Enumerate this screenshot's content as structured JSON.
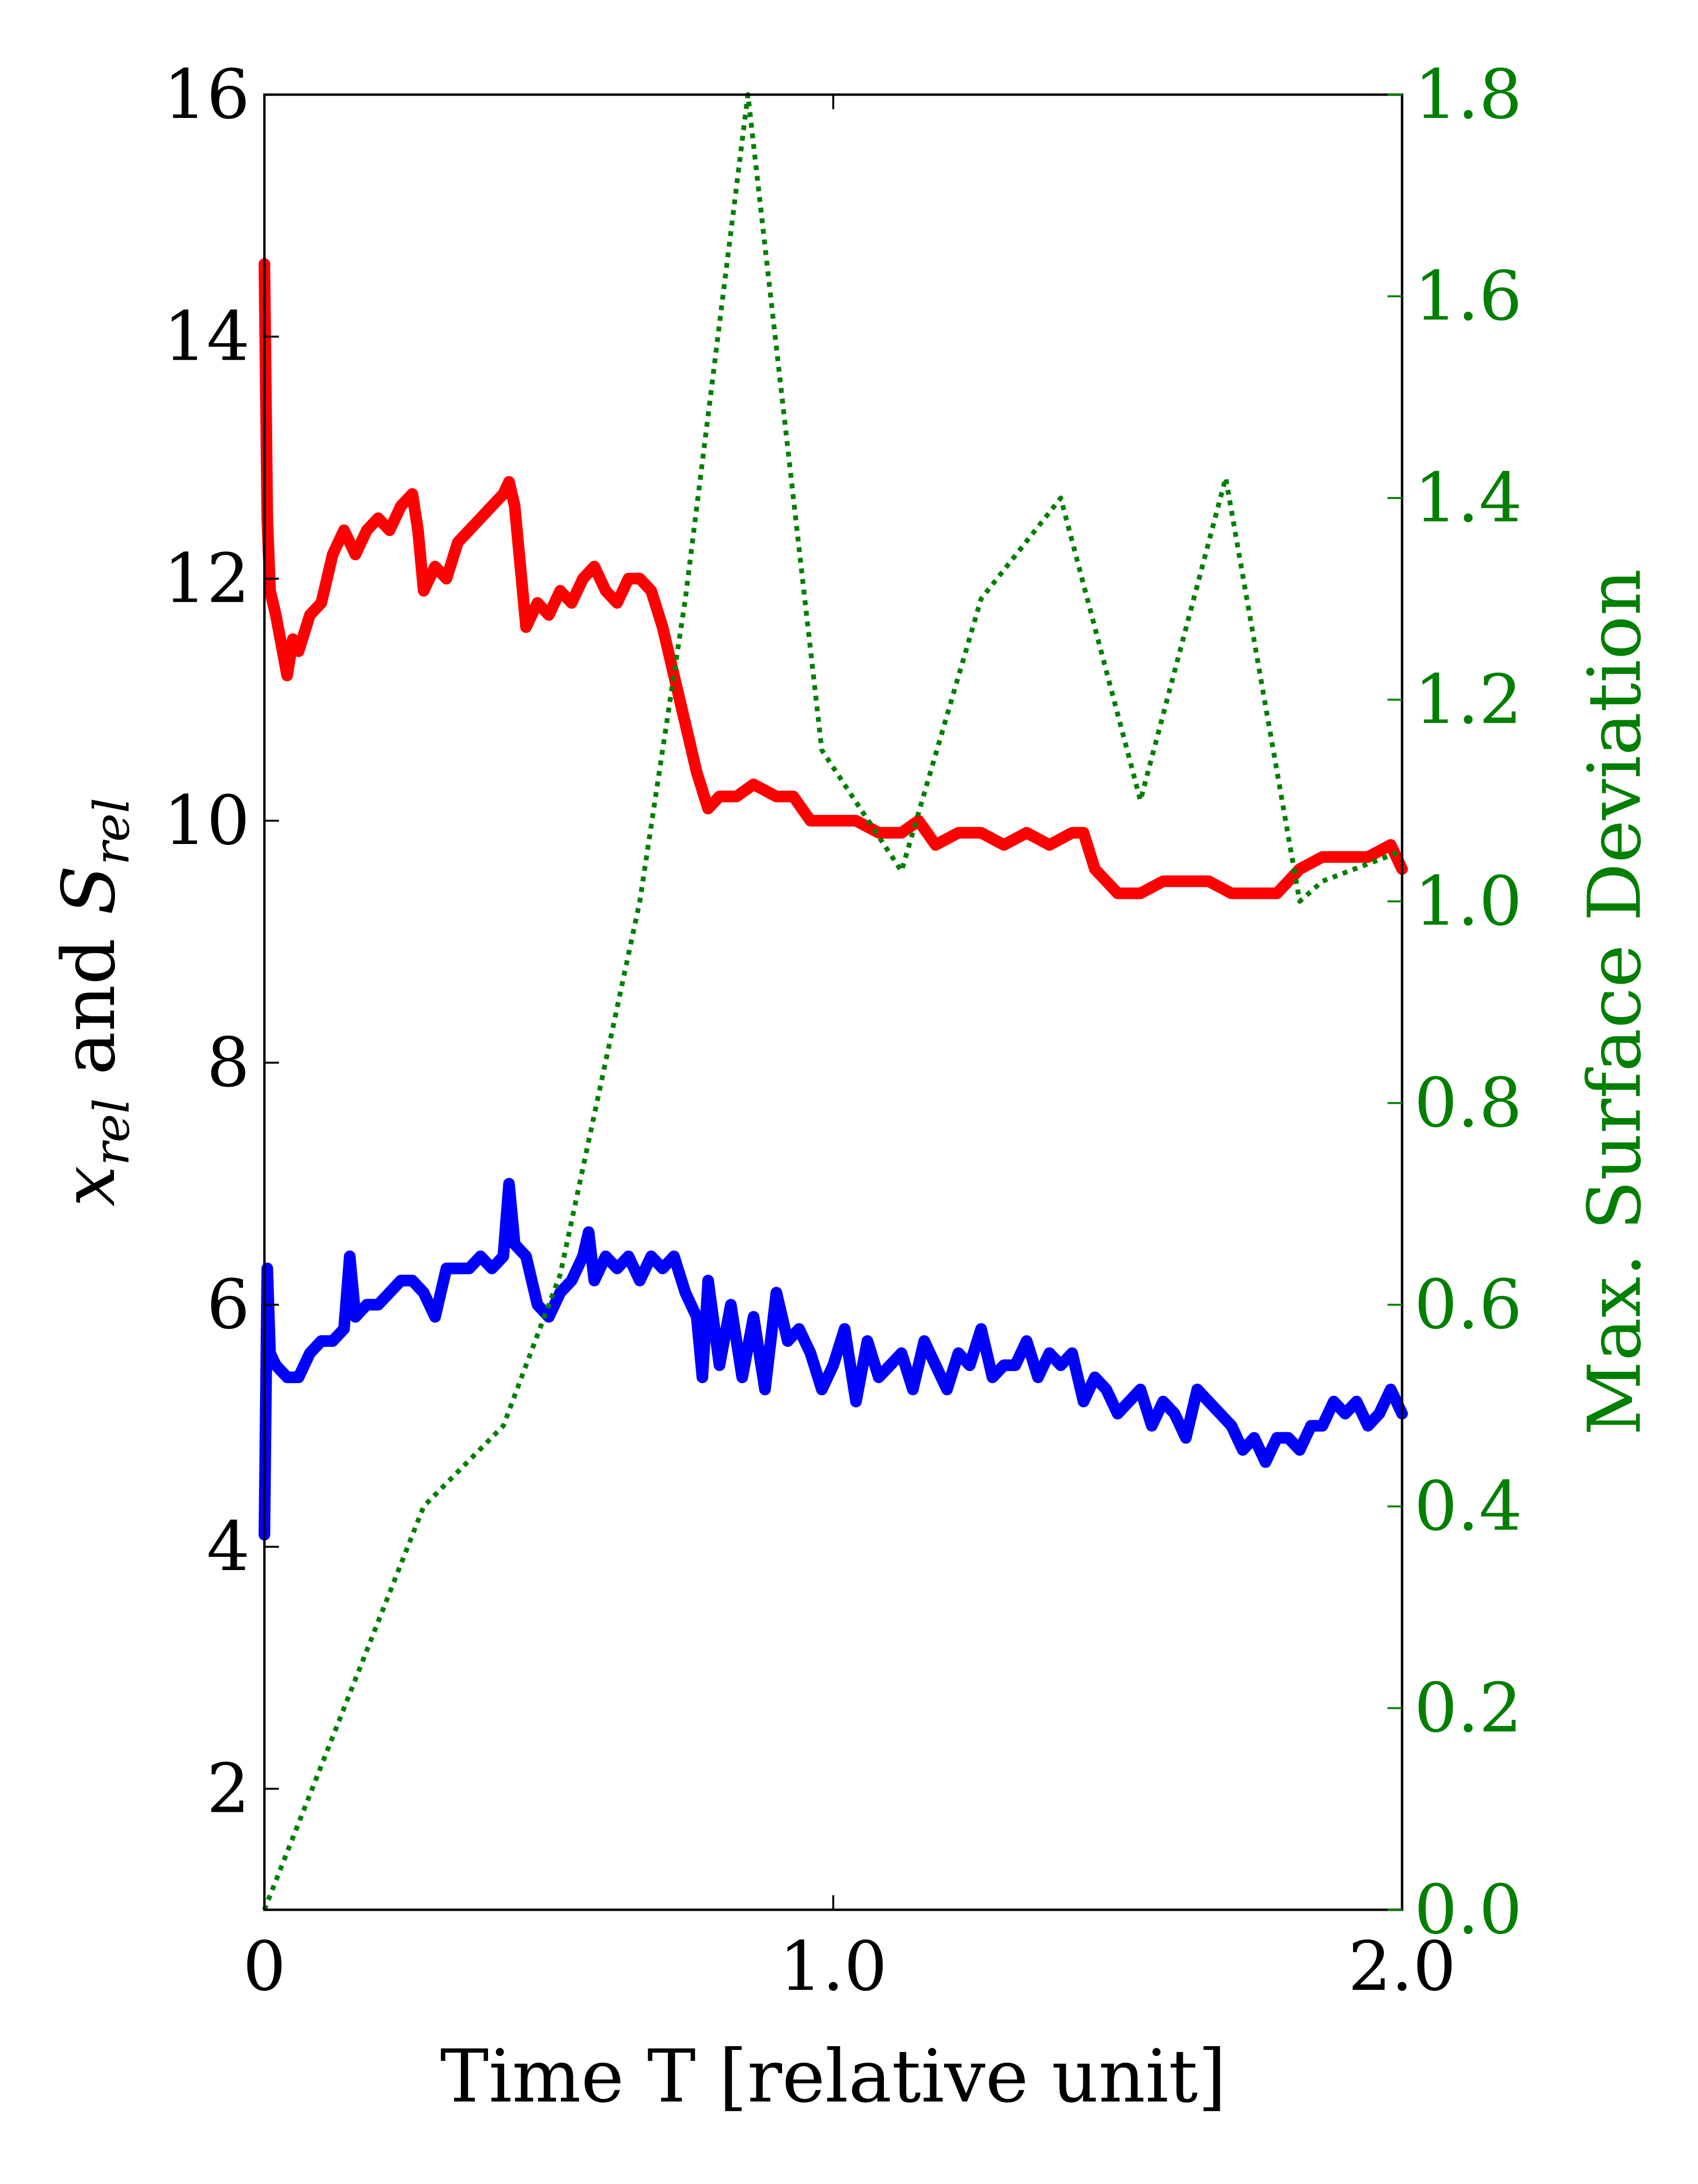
{
  "chart_data": {
    "type": "line",
    "xlabel": "Time T [relative unit]",
    "ylabel_left": {
      "base1": "x",
      "sub1": "rel",
      "mid": " and ",
      "base2": "S",
      "sub2": "rel"
    },
    "ylabel_right": "Max. Surface Deviation",
    "xlim": [
      0,
      2.0
    ],
    "ylim_left": [
      1,
      16
    ],
    "ylim_right": [
      0,
      1.8
    ],
    "xticks": [
      0,
      1.0,
      2.0
    ],
    "xtick_labels": [
      "0",
      "1.0",
      "2.0"
    ],
    "yticks_left": [
      2,
      4,
      6,
      8,
      10,
      12,
      14,
      16
    ],
    "ytick_labels_left": [
      "2",
      "4",
      "6",
      "8",
      "10",
      "12",
      "14",
      "16"
    ],
    "yticks_right": [
      0.0,
      0.2,
      0.4,
      0.6,
      0.8,
      1.0,
      1.2,
      1.4,
      1.6,
      1.8
    ],
    "ytick_labels_right": [
      "0.0",
      "0.2",
      "0.4",
      "0.6",
      "0.8",
      "1.0",
      "1.2",
      "1.4",
      "1.6",
      "1.8"
    ],
    "grid": false,
    "colors": {
      "axes": "#000000",
      "right_axis": "#007f00",
      "red_series": "#ff0000",
      "blue_series": "#0000ff",
      "dotted_series": "#007f00"
    },
    "series": [
      {
        "axis": "left",
        "color": "#ff0000",
        "style": "solid",
        "x": [
          0,
          0.005,
          0.01,
          0.02,
          0.04,
          0.05,
          0.06,
          0.08,
          0.1,
          0.12,
          0.14,
          0.16,
          0.18,
          0.2,
          0.22,
          0.24,
          0.26,
          0.27,
          0.28,
          0.3,
          0.32,
          0.34,
          0.36,
          0.38,
          0.4,
          0.42,
          0.43,
          0.44,
          0.46,
          0.48,
          0.5,
          0.52,
          0.54,
          0.56,
          0.58,
          0.6,
          0.62,
          0.64,
          0.66,
          0.68,
          0.7,
          0.72,
          0.74,
          0.76,
          0.78,
          0.8,
          0.83,
          0.86,
          0.9,
          0.93,
          0.96,
          1.0,
          1.04,
          1.08,
          1.12,
          1.15,
          1.18,
          1.22,
          1.26,
          1.3,
          1.34,
          1.38,
          1.42,
          1.44,
          1.46,
          1.5,
          1.54,
          1.58,
          1.62,
          1.66,
          1.7,
          1.74,
          1.78,
          1.82,
          1.86,
          1.9,
          1.94,
          1.98,
          2.0
        ],
        "y": [
          14.6,
          12.5,
          11.9,
          11.7,
          11.2,
          11.5,
          11.4,
          11.7,
          11.8,
          12.2,
          12.4,
          12.2,
          12.4,
          12.5,
          12.4,
          12.6,
          12.7,
          12.4,
          11.9,
          12.1,
          12.0,
          12.3,
          12.4,
          12.5,
          12.6,
          12.7,
          12.8,
          12.6,
          11.6,
          11.8,
          11.7,
          11.9,
          11.8,
          12.0,
          12.1,
          11.9,
          11.8,
          12.0,
          12.0,
          11.9,
          11.6,
          11.2,
          10.8,
          10.4,
          10.1,
          10.2,
          10.2,
          10.3,
          10.2,
          10.2,
          10.0,
          10.0,
          10.0,
          9.9,
          9.9,
          10.0,
          9.8,
          9.9,
          9.9,
          9.8,
          9.9,
          9.8,
          9.9,
          9.9,
          9.6,
          9.4,
          9.4,
          9.5,
          9.5,
          9.5,
          9.4,
          9.4,
          9.4,
          9.6,
          9.7,
          9.7,
          9.7,
          9.8,
          9.6
        ]
      },
      {
        "axis": "left",
        "color": "#0000ff",
        "style": "solid",
        "x": [
          0,
          0.005,
          0.01,
          0.02,
          0.04,
          0.06,
          0.08,
          0.1,
          0.12,
          0.14,
          0.15,
          0.16,
          0.18,
          0.2,
          0.22,
          0.24,
          0.26,
          0.28,
          0.3,
          0.32,
          0.34,
          0.36,
          0.38,
          0.4,
          0.42,
          0.43,
          0.44,
          0.46,
          0.48,
          0.5,
          0.52,
          0.54,
          0.56,
          0.57,
          0.58,
          0.6,
          0.62,
          0.64,
          0.66,
          0.68,
          0.7,
          0.72,
          0.74,
          0.76,
          0.77,
          0.78,
          0.8,
          0.82,
          0.84,
          0.86,
          0.88,
          0.9,
          0.92,
          0.94,
          0.96,
          0.98,
          1.0,
          1.02,
          1.04,
          1.06,
          1.08,
          1.1,
          1.12,
          1.14,
          1.16,
          1.18,
          1.2,
          1.22,
          1.24,
          1.26,
          1.28,
          1.3,
          1.32,
          1.34,
          1.36,
          1.38,
          1.4,
          1.42,
          1.44,
          1.46,
          1.48,
          1.5,
          1.52,
          1.54,
          1.56,
          1.58,
          1.6,
          1.62,
          1.64,
          1.66,
          1.68,
          1.7,
          1.72,
          1.74,
          1.76,
          1.78,
          1.8,
          1.82,
          1.84,
          1.86,
          1.88,
          1.9,
          1.92,
          1.94,
          1.96,
          1.98,
          2.0
        ],
        "y": [
          4.1,
          6.3,
          5.6,
          5.5,
          5.4,
          5.4,
          5.6,
          5.7,
          5.7,
          5.8,
          6.4,
          5.9,
          6.0,
          6.0,
          6.1,
          6.2,
          6.2,
          6.1,
          5.9,
          6.3,
          6.3,
          6.3,
          6.4,
          6.3,
          6.4,
          7.0,
          6.5,
          6.4,
          6.0,
          5.9,
          6.1,
          6.2,
          6.4,
          6.6,
          6.2,
          6.4,
          6.3,
          6.4,
          6.2,
          6.4,
          6.3,
          6.4,
          6.1,
          5.9,
          5.4,
          6.2,
          5.5,
          6.0,
          5.4,
          5.9,
          5.3,
          6.1,
          5.7,
          5.8,
          5.6,
          5.3,
          5.5,
          5.8,
          5.2,
          5.7,
          5.4,
          5.5,
          5.6,
          5.3,
          5.7,
          5.5,
          5.3,
          5.6,
          5.5,
          5.8,
          5.4,
          5.5,
          5.5,
          5.7,
          5.4,
          5.6,
          5.5,
          5.6,
          5.2,
          5.4,
          5.3,
          5.1,
          5.2,
          5.3,
          5.0,
          5.2,
          5.1,
          4.9,
          5.3,
          5.2,
          5.1,
          5.0,
          4.8,
          4.9,
          4.7,
          4.9,
          4.9,
          4.8,
          5.0,
          5.0,
          5.2,
          5.1,
          5.2,
          5.0,
          5.1,
          5.3,
          5.1
        ]
      },
      {
        "axis": "right",
        "color": "#007f00",
        "style": "dotted",
        "x": [
          0,
          0.28,
          0.42,
          0.52,
          0.66,
          0.74,
          0.85,
          0.98,
          1.12,
          1.26,
          1.4,
          1.54,
          1.69,
          1.82,
          1.86,
          2.0
        ],
        "y": [
          0.0,
          0.4,
          0.48,
          0.63,
          1.0,
          1.3,
          1.8,
          1.15,
          1.03,
          1.3,
          1.4,
          1.1,
          1.42,
          1.0,
          1.02,
          1.05
        ]
      }
    ]
  }
}
